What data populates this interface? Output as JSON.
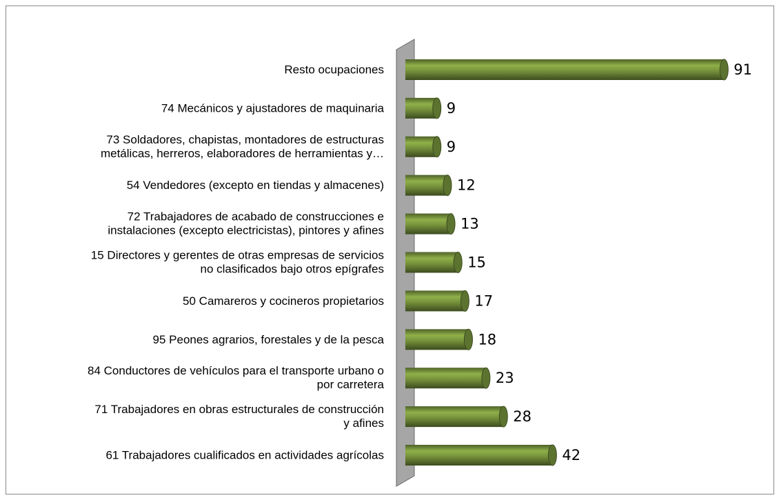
{
  "chart_data": {
    "type": "bar",
    "orientation": "horizontal",
    "categories": [
      "Resto ocupaciones",
      "74 Mecánicos y ajustadores de maquinaria",
      "73 Soldadores, chapistas, montadores de estructuras\nmetálicas, herreros, elaboradores de herramientas y…",
      "54 Vendedores (excepto en tiendas y almacenes)",
      "72 Trabajadores de acabado de construcciones e\ninstalaciones (excepto electricistas), pintores y afines",
      "15 Directores y gerentes de otras empresas de servicios\nno clasificados bajo otros epígrafes",
      "50 Camareros y cocineros propietarios",
      "95 Peones agrarios, forestales y de la pesca",
      "84 Conductores de vehículos para el transporte urbano o\npor carretera",
      "71 Trabajadores en obras estructurales de construcción\ny afines",
      "61 Trabajadores cualificados en actividades agrícolas"
    ],
    "values": [
      91,
      9,
      9,
      12,
      13,
      15,
      17,
      18,
      23,
      28,
      42
    ],
    "color": "#77933c"
  }
}
